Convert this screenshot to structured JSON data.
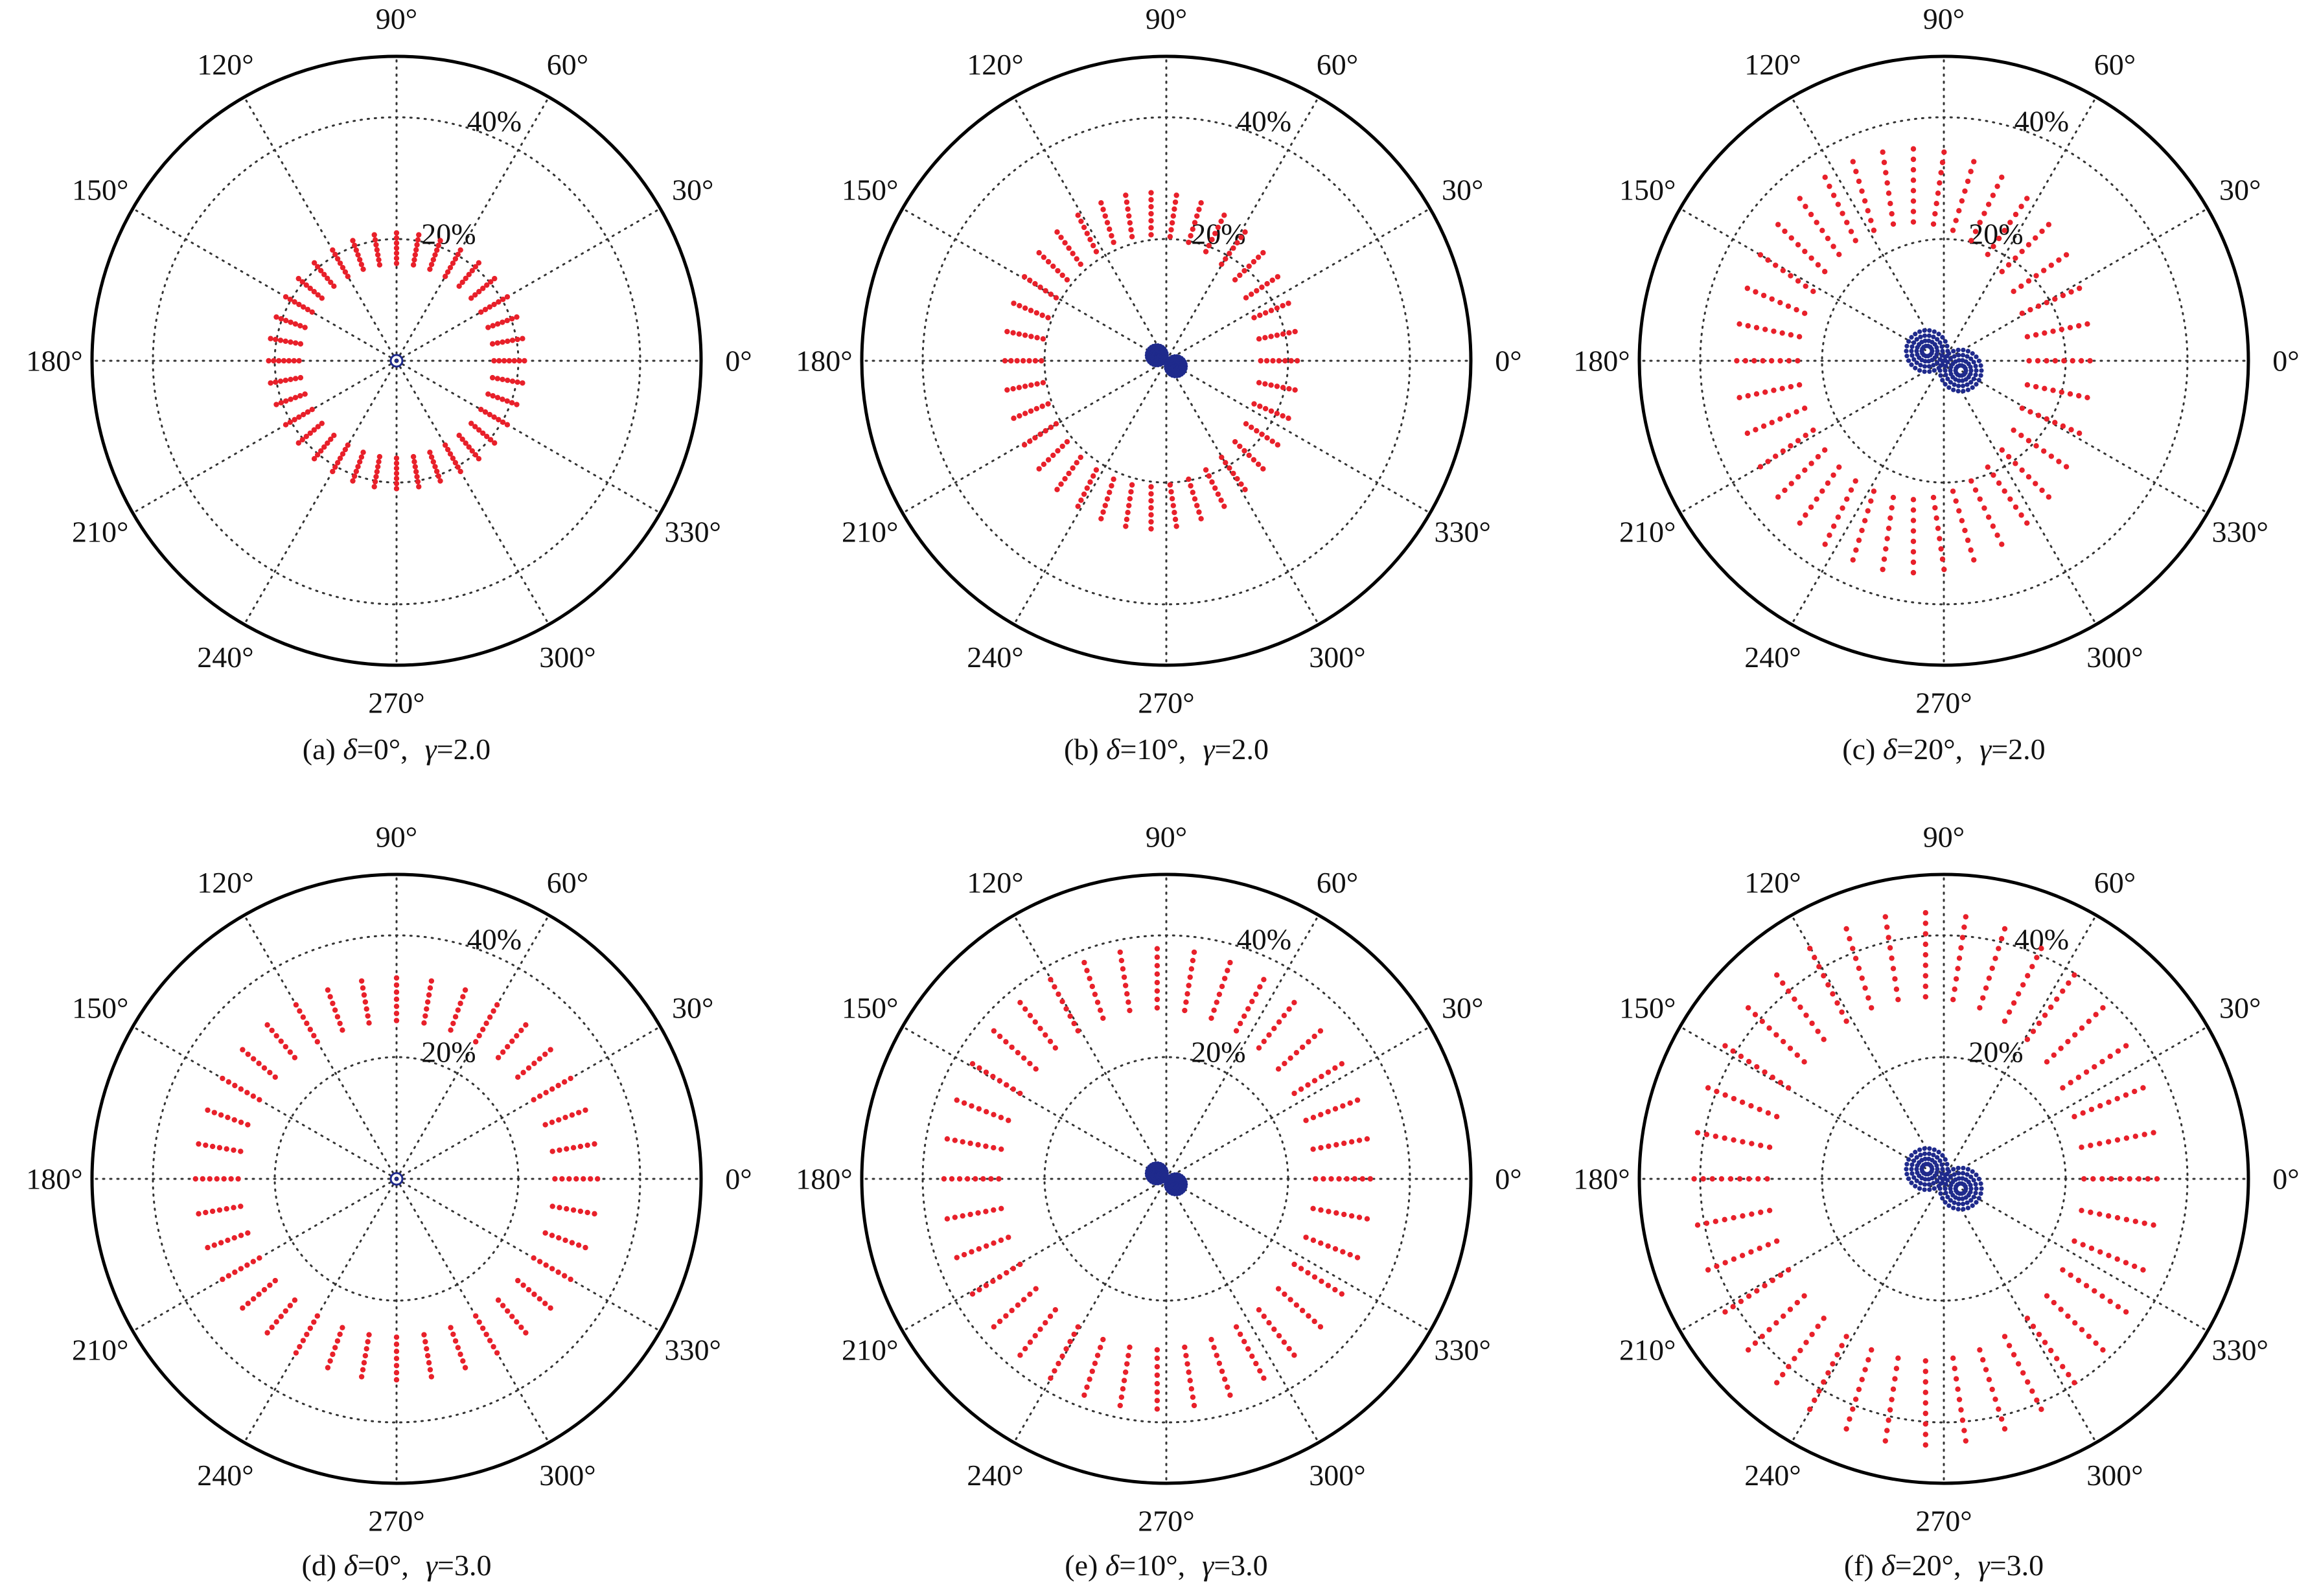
{
  "chart_data": [
    {
      "type": "scatter",
      "subplot": "a",
      "caption": {
        "prefix": "(a) ",
        "delta_sym": "δ",
        "delta": "=0°,",
        "gamma_sym": "γ",
        "gamma": "=2.0"
      },
      "projection": "polar",
      "r_max_percent": 50,
      "r_ticks": [
        20,
        40
      ],
      "r_tick_labels": [
        "20%",
        "40%"
      ],
      "angle_ticks_deg": [
        0,
        30,
        60,
        90,
        120,
        150,
        180,
        210,
        240,
        270,
        300,
        330
      ],
      "angle_tick_labels": [
        "0°",
        "30°",
        "60°",
        "90°",
        "120°",
        "150°",
        "180°",
        "210°",
        "240°",
        "270°",
        "300°",
        "330°"
      ],
      "grid": "dotted",
      "series": [
        {
          "color": "#e8202a",
          "spokes_deg_step": 10,
          "r_inner": 16,
          "r_outer": 21,
          "x_shift": 0,
          "y_stretch": 1.0,
          "points_per_spoke": 7
        },
        {
          "color": "#1f2a8c",
          "shape": "point-at-origin",
          "r": 0.3
        }
      ]
    },
    {
      "type": "scatter",
      "subplot": "b",
      "caption": {
        "prefix": "(b) ",
        "delta_sym": "δ",
        "delta": "=10°,",
        "gamma_sym": "γ",
        "gamma": "=2.0"
      },
      "projection": "polar",
      "r_max_percent": 50,
      "r_ticks": [
        20,
        40
      ],
      "r_tick_labels": [
        "20%",
        "40%"
      ],
      "angle_ticks_deg": [
        0,
        30,
        60,
        90,
        120,
        150,
        180,
        210,
        240,
        270,
        300,
        330
      ],
      "angle_tick_labels": [
        "0°",
        "30°",
        "60°",
        "90°",
        "120°",
        "150°",
        "180°",
        "210°",
        "240°",
        "270°",
        "300°",
        "330°"
      ],
      "grid": "dotted",
      "series": [
        {
          "color": "#e8202a",
          "spokes_deg_step": 10,
          "r_inner": 18,
          "r_outer": 24,
          "x_shift": -2.5,
          "y_stretch": 1.15,
          "points_per_spoke": 7
        },
        {
          "color": "#1f2a8c",
          "shape": "twin-lobes",
          "lobe_offset": 1.8,
          "lobe_radius": 1.6,
          "lobe_axis_deg": -30
        }
      ]
    },
    {
      "type": "scatter",
      "subplot": "c",
      "caption": {
        "prefix": "(c) ",
        "delta_sym": "δ",
        "delta": "=20°,",
        "gamma_sym": "γ",
        "gamma": "=2.0"
      },
      "projection": "polar",
      "r_max_percent": 50,
      "r_ticks": [
        20,
        40
      ],
      "r_tick_labels": [
        "20%",
        "40%"
      ],
      "angle_ticks_deg": [
        0,
        30,
        60,
        90,
        120,
        150,
        180,
        210,
        240,
        270,
        300,
        330
      ],
      "angle_tick_labels": [
        "0°",
        "30°",
        "60°",
        "90°",
        "120°",
        "150°",
        "180°",
        "210°",
        "240°",
        "270°",
        "300°",
        "330°"
      ],
      "grid": "dotted",
      "series": [
        {
          "color": "#e8202a",
          "spokes_deg_step": 10,
          "r_inner": 19,
          "r_outer": 29,
          "x_shift": -5,
          "y_stretch": 1.2,
          "points_per_spoke": 8
        },
        {
          "color": "#1f2a8c",
          "shape": "twin-lobes",
          "lobe_offset": 3.2,
          "lobe_radius": 3.4,
          "lobe_axis_deg": -30
        }
      ]
    },
    {
      "type": "scatter",
      "subplot": "d",
      "caption": {
        "prefix": "(d) ",
        "delta_sym": "δ",
        "delta": "=0°,",
        "gamma_sym": "γ",
        "gamma": "=3.0"
      },
      "projection": "polar",
      "r_max_percent": 50,
      "r_ticks": [
        20,
        40
      ],
      "r_tick_labels": [
        "20%",
        "40%"
      ],
      "angle_ticks_deg": [
        0,
        30,
        60,
        90,
        120,
        150,
        180,
        210,
        240,
        270,
        300,
        330
      ],
      "angle_tick_labels": [
        "0°",
        "30°",
        "60°",
        "90°",
        "120°",
        "150°",
        "180°",
        "210°",
        "240°",
        "270°",
        "300°",
        "330°"
      ],
      "grid": "dotted",
      "series": [
        {
          "color": "#e8202a",
          "spokes_deg_step": 10,
          "r_inner": 26,
          "r_outer": 33,
          "x_shift": 0,
          "y_stretch": 1.0,
          "points_per_spoke": 7
        },
        {
          "color": "#1f2a8c",
          "shape": "point-at-origin",
          "r": 0.3
        }
      ]
    },
    {
      "type": "scatter",
      "subplot": "e",
      "caption": {
        "prefix": "(e) ",
        "delta_sym": "δ",
        "delta": "=10°,",
        "gamma_sym": "γ",
        "gamma": "=3.0"
      },
      "projection": "polar",
      "r_max_percent": 50,
      "r_ticks": [
        20,
        40
      ],
      "r_tick_labels": [
        "20%",
        "40%"
      ],
      "angle_ticks_deg": [
        0,
        30,
        60,
        90,
        120,
        150,
        180,
        210,
        240,
        270,
        300,
        330
      ],
      "angle_tick_labels": [
        "0°",
        "30°",
        "60°",
        "90°",
        "120°",
        "150°",
        "180°",
        "210°",
        "240°",
        "270°",
        "300°",
        "330°"
      ],
      "grid": "dotted",
      "series": [
        {
          "color": "#e8202a",
          "spokes_deg_step": 10,
          "r_inner": 26,
          "r_outer": 35,
          "x_shift": -1.5,
          "y_stretch": 1.08,
          "points_per_spoke": 8
        },
        {
          "color": "#1f2a8c",
          "shape": "twin-lobes",
          "lobe_offset": 1.8,
          "lobe_radius": 1.6,
          "lobe_axis_deg": -30
        }
      ]
    },
    {
      "type": "scatter",
      "subplot": "f",
      "caption": {
        "prefix": "(f) ",
        "delta_sym": "δ",
        "delta": "=20°,",
        "gamma_sym": "γ",
        "gamma": "=3.0"
      },
      "projection": "polar",
      "r_max_percent": 50,
      "r_ticks": [
        20,
        40
      ],
      "r_tick_labels": [
        "20%",
        "40%"
      ],
      "angle_ticks_deg": [
        0,
        30,
        60,
        90,
        120,
        150,
        180,
        210,
        240,
        270,
        300,
        330
      ],
      "angle_tick_labels": [
        "0°",
        "30°",
        "60°",
        "90°",
        "120°",
        "150°",
        "180°",
        "210°",
        "240°",
        "270°",
        "300°",
        "330°"
      ],
      "grid": "dotted",
      "series": [
        {
          "color": "#e8202a",
          "spokes_deg_step": 10,
          "r_inner": 26,
          "r_outer": 38,
          "x_shift": -3,
          "y_stretch": 1.15,
          "points_per_spoke": 9
        },
        {
          "color": "#1f2a8c",
          "shape": "twin-lobes",
          "lobe_offset": 3.2,
          "lobe_radius": 3.4,
          "lobe_axis_deg": -30
        }
      ]
    }
  ]
}
